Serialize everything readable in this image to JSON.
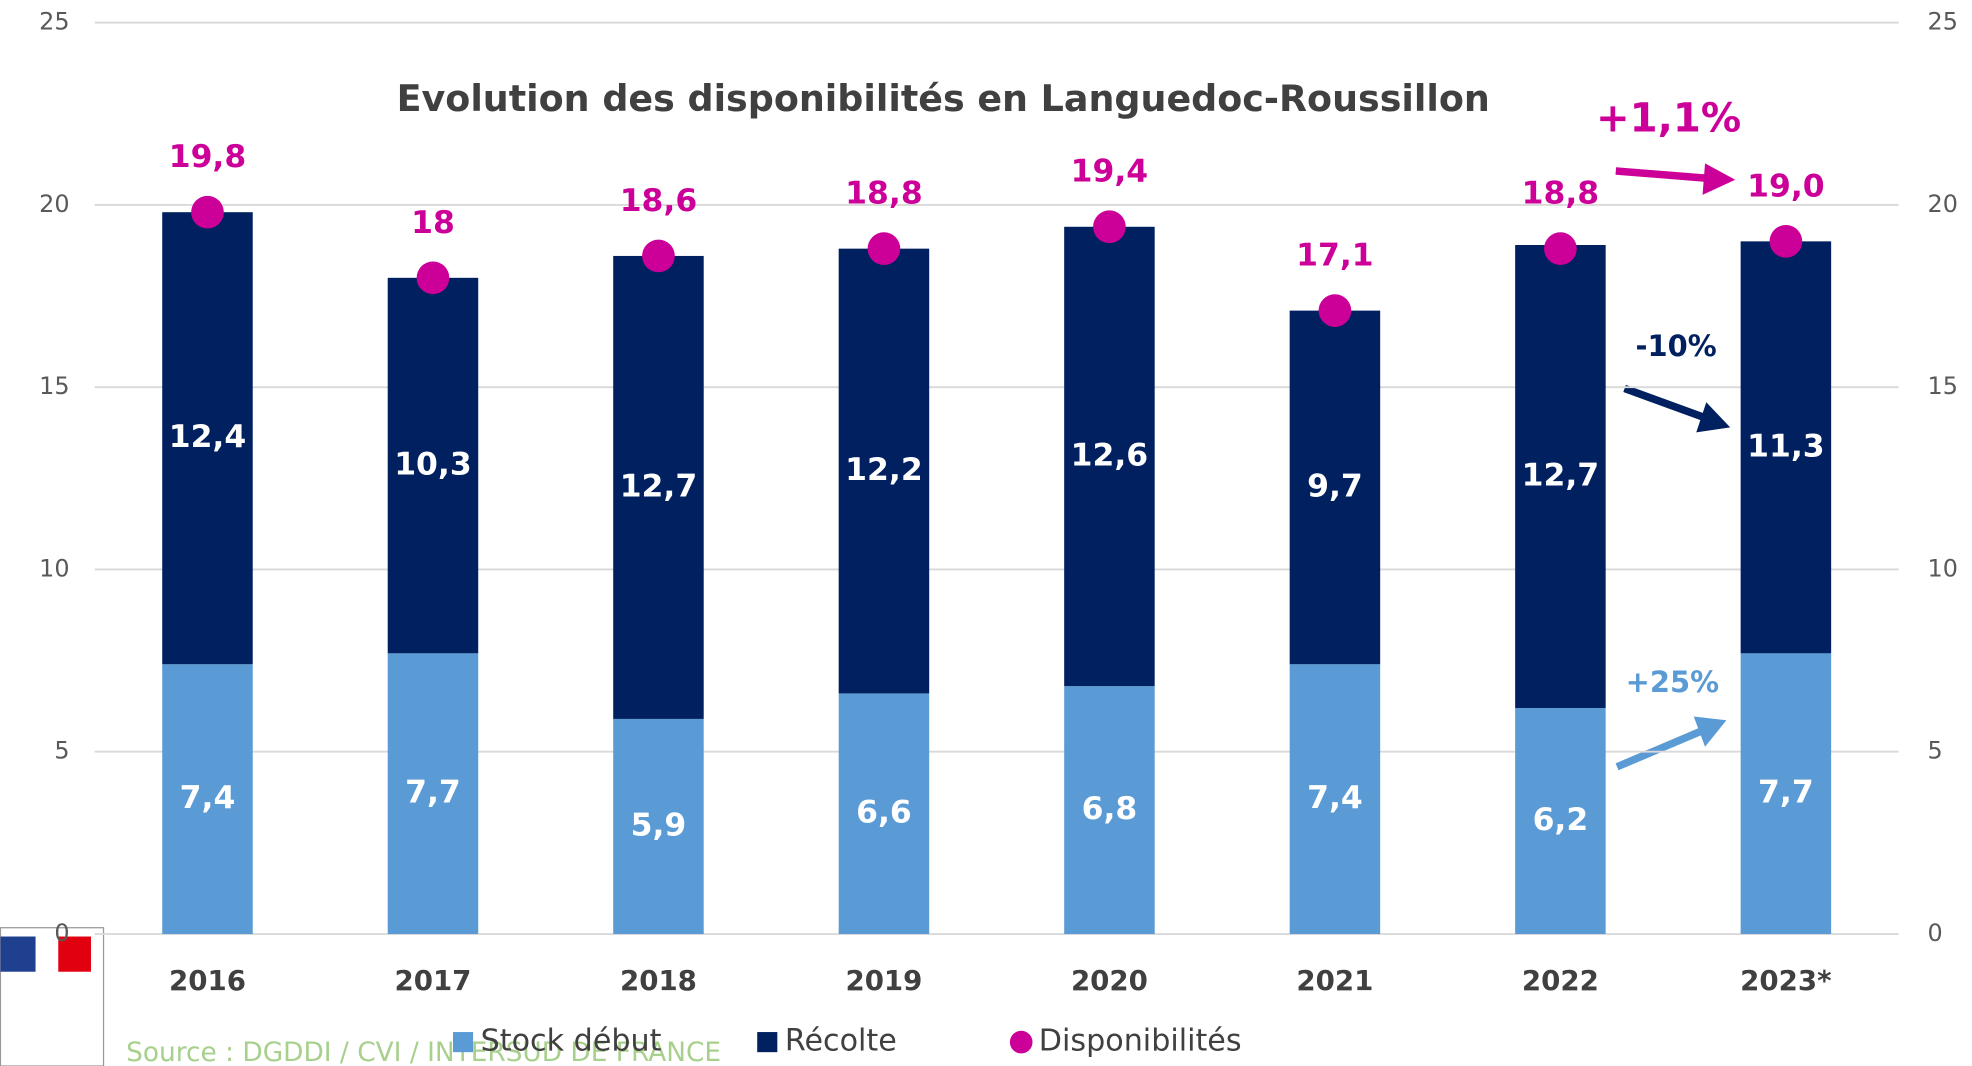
{
  "chart_data": {
    "type": "bar",
    "stacked": true,
    "title": "Evolution des disponibilités en Languedoc-Roussillon",
    "categories": [
      "2016",
      "2017",
      "2018",
      "2019",
      "2020",
      "2021",
      "2022",
      "2023*"
    ],
    "series": [
      {
        "name": "Stock début",
        "color": "#5b9bd5",
        "values": [
          7.4,
          7.7,
          5.9,
          6.6,
          6.8,
          7.4,
          6.2,
          7.7
        ],
        "value_labels": [
          "7,4",
          "7,7",
          "5,9",
          "6,6",
          "6,8",
          "7,4",
          "6,2",
          "7,7"
        ]
      },
      {
        "name": "Récolte",
        "color": "#002060",
        "values": [
          12.4,
          10.3,
          12.7,
          12.2,
          12.6,
          9.7,
          12.7,
          11.3
        ],
        "value_labels": [
          "12,4",
          "10,3",
          "12,7",
          "12,2",
          "12,6",
          "9,7",
          "12,7",
          "11,3"
        ]
      },
      {
        "name": "Disponibilités",
        "type": "scatter",
        "color": "#cc0099",
        "values": [
          19.8,
          18,
          18.6,
          18.8,
          19.4,
          17.1,
          18.8,
          19.0
        ],
        "value_labels": [
          "19,8",
          "18",
          "18,6",
          "18,8",
          "19,4",
          "17,1",
          "18,8",
          "19,0"
        ]
      }
    ],
    "ylim": [
      0,
      25
    ],
    "yticks": [
      0,
      5,
      10,
      15,
      20,
      25
    ],
    "y2lim": [
      0,
      25
    ],
    "y2ticks": [
      0,
      5,
      10,
      15,
      20,
      25
    ],
    "grid": true,
    "legend": "bottom",
    "annotations": [
      {
        "text": "+1,1%",
        "color": "#cc0099"
      },
      {
        "text": "-10%",
        "color": "#002060"
      },
      {
        "text": "+25%",
        "color": "#5b9bd5"
      }
    ],
    "source": "Source : DGDDI / CVI / INTERSUD DE FRANCE"
  }
}
